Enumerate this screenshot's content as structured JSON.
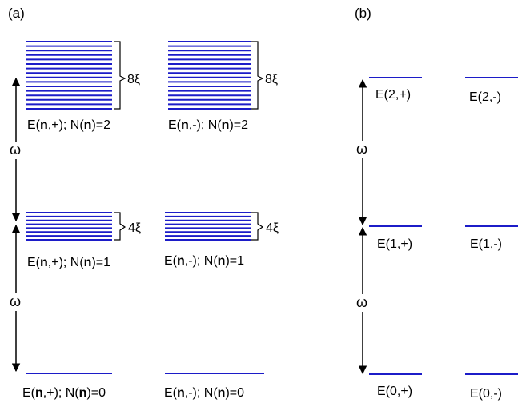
{
  "colors": {
    "level": "#1c1cc8",
    "ink": "#000000",
    "background": "#ffffff"
  },
  "panel_a": {
    "label": "(a)",
    "omega_symbol": "ω",
    "groups": [
      {
        "caption_prefix": "E(",
        "caption_bold": "n",
        "caption_mid": ",+); N(",
        "caption_bold2": "n",
        "caption_suffix": ")=2",
        "level_count": 16,
        "bracket_label": "8ξ"
      },
      {
        "caption_prefix": "E(",
        "caption_bold": "n",
        "caption_mid": ",-); N(",
        "caption_bold2": "n",
        "caption_suffix": ")=2",
        "level_count": 16,
        "bracket_label": "8ξ"
      },
      {
        "caption_prefix": "E(",
        "caption_bold": "n",
        "caption_mid": ",+); N(",
        "caption_bold2": "n",
        "caption_suffix": ")=1",
        "level_count": 8,
        "bracket_label": "4ξ"
      },
      {
        "caption_prefix": "E(",
        "caption_bold": "n",
        "caption_mid": ",-); N(",
        "caption_bold2": "n",
        "caption_suffix": ")=1",
        "level_count": 8,
        "bracket_label": "4ξ"
      },
      {
        "caption_prefix": "E(",
        "caption_bold": "n",
        "caption_mid": ",+); N(",
        "caption_bold2": "n",
        "caption_suffix": ")=0",
        "level_count": 1,
        "bracket_label": ""
      },
      {
        "caption_prefix": "E(",
        "caption_bold": "n",
        "caption_mid": ",-); N(",
        "caption_bold2": "n",
        "caption_suffix": ")=0",
        "level_count": 1,
        "bracket_label": ""
      }
    ]
  },
  "panel_b": {
    "label": "(b)",
    "omega_symbol": "ω",
    "levels": [
      {
        "label": "E(2,+)"
      },
      {
        "label": "E(2,-)"
      },
      {
        "label": "E(1,+)"
      },
      {
        "label": "E(1,-)"
      },
      {
        "label": "E(0,+)"
      },
      {
        "label": "E(0,-)"
      }
    ]
  }
}
